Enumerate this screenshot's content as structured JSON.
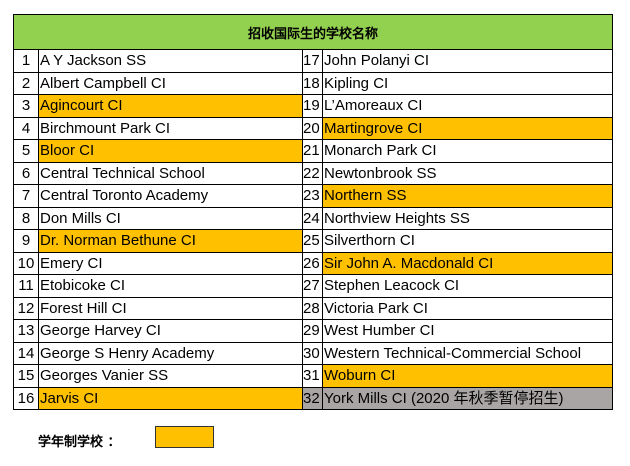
{
  "title": "招收国际生的学校名称",
  "colors": {
    "header": "#92d050",
    "semester_school": "#ffc000",
    "suspended": "#aaa5a5"
  },
  "schools": [
    {
      "no": "1",
      "name": "A Y Jackson SS",
      "highlight": false
    },
    {
      "no": "2",
      "name": "Albert Campbell CI",
      "highlight": false
    },
    {
      "no": "3",
      "name": "Agincourt CI",
      "highlight": true
    },
    {
      "no": "4",
      "name": "Birchmount Park CI",
      "highlight": false
    },
    {
      "no": "5",
      "name": "Bloor CI",
      "highlight": true
    },
    {
      "no": "6",
      "name": "Central Technical School",
      "highlight": false
    },
    {
      "no": "7",
      "name": "Central Toronto Academy",
      "highlight": false
    },
    {
      "no": "8",
      "name": "Don Mills CI",
      "highlight": false
    },
    {
      "no": "9",
      "name": "Dr. Norman Bethune CI",
      "highlight": true
    },
    {
      "no": "10",
      "name": "Emery CI",
      "highlight": false
    },
    {
      "no": "11",
      "name": "Etobicoke CI",
      "highlight": false
    },
    {
      "no": "12",
      "name": "Forest Hill CI",
      "highlight": false
    },
    {
      "no": "13",
      "name": "George Harvey CI",
      "highlight": false
    },
    {
      "no": "14",
      "name": "George S Henry Academy",
      "highlight": false
    },
    {
      "no": "15",
      "name": "Georges Vanier SS",
      "highlight": false
    },
    {
      "no": "16",
      "name": "Jarvis CI",
      "highlight": true
    },
    {
      "no": "17",
      "name": "John Polanyi CI",
      "highlight": false
    },
    {
      "no": "18",
      "name": "Kipling CI",
      "highlight": false
    },
    {
      "no": "19",
      "name": "L’Amoreaux CI",
      "highlight": false
    },
    {
      "no": "20",
      "name": "Martingrove CI",
      "highlight": true
    },
    {
      "no": "21",
      "name": "Monarch Park CI",
      "highlight": false
    },
    {
      "no": "22",
      "name": "Newtonbrook SS",
      "highlight": false
    },
    {
      "no": "23",
      "name": "Northern SS",
      "highlight": true
    },
    {
      "no": "24",
      "name": "Northview Heights SS",
      "highlight": false
    },
    {
      "no": "25",
      "name": "Silverthorn CI",
      "highlight": false
    },
    {
      "no": "26",
      "name": "Sir John A. Macdonald CI",
      "highlight": true
    },
    {
      "no": "27",
      "name": "Stephen Leacock CI",
      "highlight": false
    },
    {
      "no": "28",
      "name": "Victoria Park CI",
      "highlight": false
    },
    {
      "no": "29",
      "name": "West Humber CI",
      "highlight": false
    },
    {
      "no": "30",
      "name": "Western Technical-Commercial School",
      "highlight": false
    },
    {
      "no": "31",
      "name": "Woburn CI",
      "highlight": true
    },
    {
      "no": "32",
      "name": "York Mills CI (2020 年秋季暂停招生)",
      "highlight": false,
      "suspended": true
    }
  ],
  "legend": {
    "label": "学年制学校 ："
  }
}
